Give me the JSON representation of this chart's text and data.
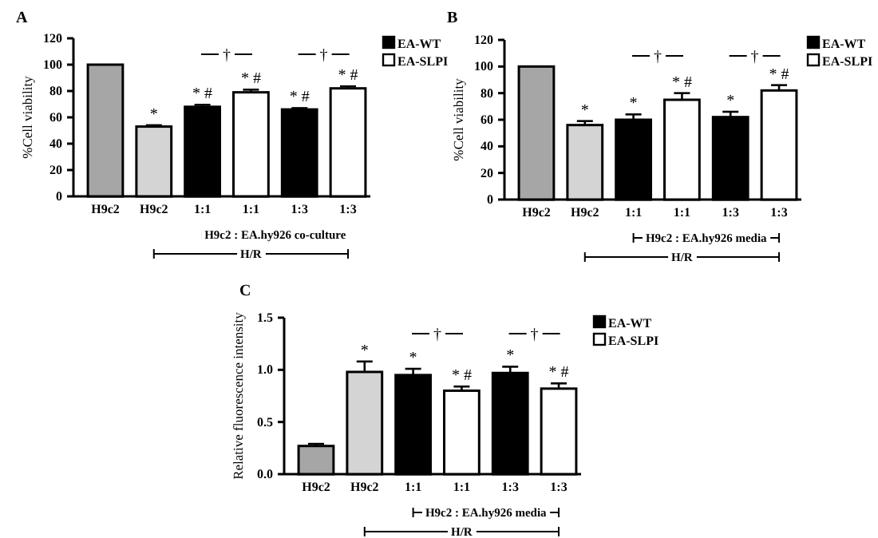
{
  "chart_data": [
    {
      "type": "bar",
      "title": "A",
      "ylabel": "%Cell viability",
      "categories": [
        "H9c2",
        "H9c2",
        "1:1",
        "1:1",
        "1:3",
        "1:3"
      ],
      "ylim": [
        0,
        120
      ],
      "yticks": [
        0,
        20,
        40,
        60,
        80,
        100,
        120
      ],
      "legend": "top right",
      "series": [
        {
          "color": "#a6a6a6",
          "values": [
            100,
            null,
            null,
            null,
            null,
            null
          ]
        },
        {
          "color": "#d4d4d4",
          "values": [
            null,
            53,
            null,
            null,
            null,
            null
          ],
          "errors": [
            null,
            1,
            null,
            null,
            null,
            null
          ],
          "value_labels": [
            null,
            "*",
            null,
            null,
            null,
            null
          ]
        },
        {
          "name": "EA-WT",
          "color": "#000000",
          "values": [
            null,
            null,
            68,
            null,
            66,
            null
          ],
          "errors": [
            null,
            null,
            1.5,
            null,
            1,
            null
          ],
          "value_labels": [
            null,
            null,
            "* #",
            null,
            "* #",
            null
          ]
        },
        {
          "name": "EA-SLPI",
          "color": "#ffffff",
          "values": [
            null,
            null,
            null,
            79,
            null,
            82
          ],
          "errors": [
            null,
            null,
            null,
            2,
            null,
            1.5
          ],
          "value_labels": [
            null,
            null,
            null,
            "* #",
            null,
            "* #"
          ]
        }
      ],
      "annotations": [
        "†",
        "†",
        "H9c2 : EA.hy926 co-culture",
        "H/R"
      ]
    },
    {
      "type": "bar",
      "title": "B",
      "ylabel": "%Cell viability",
      "categories": [
        "H9c2",
        "H9c2",
        "1:1",
        "1:1",
        "1:3",
        "1:3"
      ],
      "ylim": [
        0,
        120
      ],
      "yticks": [
        0,
        20,
        40,
        60,
        80,
        100,
        120
      ],
      "legend": "top right",
      "series": [
        {
          "color": "#a6a6a6",
          "values": [
            100,
            null,
            null,
            null,
            null,
            null
          ]
        },
        {
          "color": "#d4d4d4",
          "values": [
            null,
            56,
            null,
            null,
            null,
            null
          ],
          "errors": [
            null,
            3,
            null,
            null,
            null,
            null
          ],
          "value_labels": [
            null,
            "*",
            null,
            null,
            null,
            null
          ]
        },
        {
          "name": "EA-WT",
          "color": "#000000",
          "values": [
            null,
            null,
            60,
            null,
            62,
            null
          ],
          "errors": [
            null,
            null,
            4,
            null,
            4,
            null
          ],
          "value_labels": [
            null,
            null,
            "*",
            null,
            "*",
            null
          ]
        },
        {
          "name": "EA-SLPI",
          "color": "#ffffff",
          "values": [
            null,
            null,
            null,
            75,
            null,
            82
          ],
          "errors": [
            null,
            null,
            null,
            5,
            null,
            4
          ],
          "value_labels": [
            null,
            null,
            null,
            "* #",
            null,
            "* #"
          ]
        }
      ],
      "annotations": [
        "†",
        "†",
        "H9c2 : EA.hy926 media",
        "H/R"
      ]
    },
    {
      "type": "bar",
      "title": "C",
      "ylabel": "Relative fluorescence intensity",
      "categories": [
        "H9c2",
        "H9c2",
        "1:1",
        "1:1",
        "1:3",
        "1:3"
      ],
      "ylim": [
        0,
        1.5
      ],
      "yticks": [
        {
          "value": 0,
          "label": "0.0"
        },
        {
          "value": 0.5,
          "label": "0.5"
        },
        {
          "value": 1,
          "label": "1.0"
        },
        {
          "value": 1.5,
          "label": "1.5"
        }
      ],
      "legend": "top right",
      "series": [
        {
          "color": "#a6a6a6",
          "values": [
            0.27,
            null,
            null,
            null,
            null,
            null
          ],
          "errors": [
            0.02,
            null,
            null,
            null,
            null,
            null
          ]
        },
        {
          "color": "#d4d4d4",
          "values": [
            null,
            0.98,
            null,
            null,
            null,
            null
          ],
          "errors": [
            null,
            0.1,
            null,
            null,
            null,
            null
          ],
          "value_labels": [
            null,
            "*",
            null,
            null,
            null,
            null
          ]
        },
        {
          "name": "EA-WT",
          "color": "#000000",
          "values": [
            null,
            null,
            0.95,
            null,
            0.97,
            null
          ],
          "errors": [
            null,
            null,
            0.06,
            null,
            0.06,
            null
          ],
          "value_labels": [
            null,
            null,
            "*",
            null,
            "*",
            null
          ]
        },
        {
          "name": "EA-SLPI",
          "color": "#ffffff",
          "values": [
            null,
            null,
            null,
            0.8,
            null,
            0.82
          ],
          "errors": [
            null,
            null,
            null,
            0.04,
            null,
            0.05
          ],
          "value_labels": [
            null,
            null,
            null,
            "* #",
            null,
            "* #"
          ]
        }
      ],
      "annotations": [
        "†",
        "†",
        "H9c2 : EA.hy926 media",
        "H/R"
      ]
    }
  ]
}
